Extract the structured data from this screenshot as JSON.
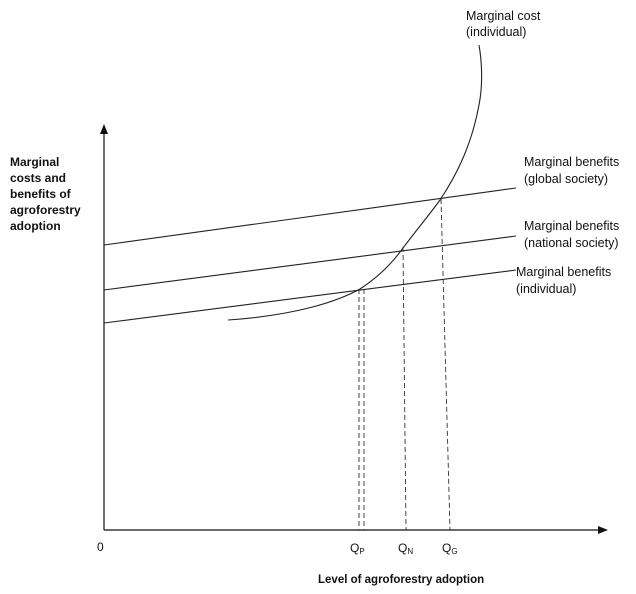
{
  "diagram": {
    "y_axis_label": [
      "Marginal",
      "costs and",
      "benefits of",
      "agroforestry",
      "adoption"
    ],
    "x_axis_label": "Level of agroforestry adoption",
    "origin_label": "0",
    "curves": {
      "marginal_cost": [
        "Marginal cost",
        "(individual)"
      ],
      "mb_global": [
        "Marginal benefits",
        "(global society)"
      ],
      "mb_national": [
        "Marginal benefits",
        "(national society)"
      ],
      "mb_individual": [
        "Marginal benefits",
        "(individual)"
      ]
    },
    "quantities": [
      {
        "main": "Q",
        "sub": "P"
      },
      {
        "main": "Q",
        "sub": "N"
      },
      {
        "main": "Q",
        "sub": "G"
      }
    ]
  }
}
